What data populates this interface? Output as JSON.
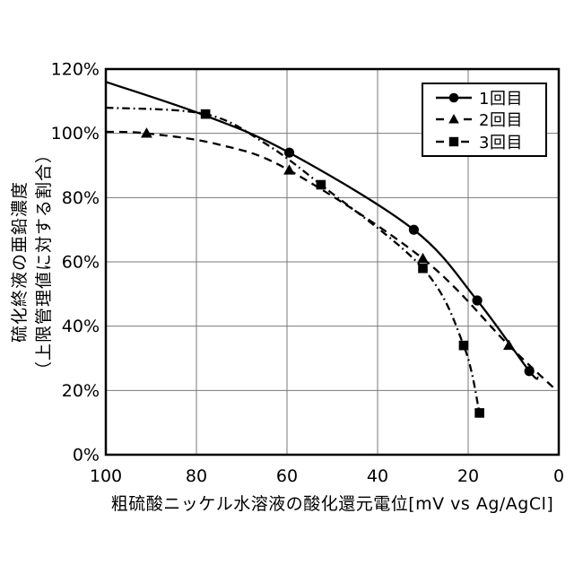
{
  "accent_colors": {
    "line_color": "#000000",
    "grid_color": "#7a7a7a",
    "background": "#ffffff"
  },
  "chart_data": {
    "type": "line",
    "title": "",
    "xlabel": "粗硫酸ニッケル水溶液の酸化還元電位[mV vs Ag/AgCl]",
    "ylabel_lines": [
      "硫化終液の亜鉛濃度",
      "（上限管理値に対する割合）"
    ],
    "x_axis": {
      "reversed": true,
      "min": 0,
      "max": 100,
      "ticks": [
        100,
        80,
        60,
        40,
        20,
        0
      ],
      "tick_labels": [
        "100",
        "80",
        "60",
        "40",
        "20",
        "0"
      ]
    },
    "y_axis": {
      "min": 0,
      "max": 120,
      "ticks": [
        0,
        20,
        40,
        60,
        80,
        100,
        120
      ],
      "tick_labels": [
        "0%",
        "20%",
        "40%",
        "60%",
        "80%",
        "100%",
        "120%"
      ]
    },
    "grid": true,
    "legend_position": "top-right",
    "series": [
      {
        "name": "1回目",
        "line_style": "solid",
        "marker": "circle",
        "points": [
          [
            100,
            116
          ],
          [
            78,
            105.5
          ],
          [
            59.5,
            94
          ],
          [
            32,
            70
          ],
          [
            18,
            48
          ],
          [
            6.5,
            26
          ],
          [
            4.5,
            24
          ]
        ],
        "marker_points": [
          [
            59.5,
            94
          ],
          [
            32,
            70
          ],
          [
            18,
            48
          ],
          [
            6.5,
            26
          ]
        ]
      },
      {
        "name": "2回目",
        "line_style": "dashed",
        "marker": "triangle",
        "points": [
          [
            100,
            100.5
          ],
          [
            91,
            100
          ],
          [
            75,
            96.5
          ],
          [
            59.5,
            88.5
          ],
          [
            30,
            61
          ],
          [
            11,
            34
          ],
          [
            0.5,
            20
          ]
        ],
        "marker_points": [
          [
            91,
            100
          ],
          [
            59.5,
            88.5
          ],
          [
            30,
            61
          ],
          [
            11,
            34
          ]
        ]
      },
      {
        "name": "3回目",
        "line_style": "dashdot",
        "marker": "square",
        "points": [
          [
            100,
            108
          ],
          [
            78,
            106
          ],
          [
            65,
            97
          ],
          [
            52.5,
            84
          ],
          [
            30,
            58
          ],
          [
            21,
            34
          ],
          [
            17.5,
            13
          ]
        ],
        "marker_points": [
          [
            78,
            106
          ],
          [
            52.5,
            84
          ],
          [
            30,
            58
          ],
          [
            21,
            34
          ],
          [
            17.5,
            13
          ]
        ]
      }
    ]
  }
}
